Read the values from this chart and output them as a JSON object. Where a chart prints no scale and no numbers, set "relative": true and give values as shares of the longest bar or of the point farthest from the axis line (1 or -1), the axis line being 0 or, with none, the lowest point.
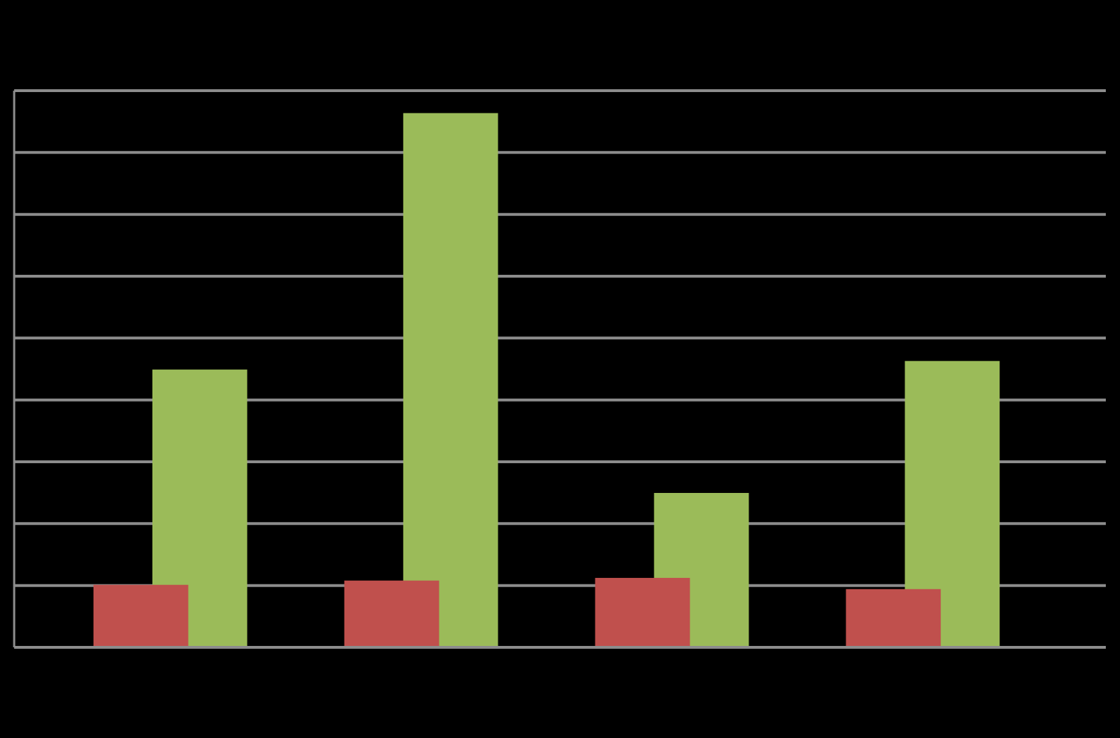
{
  "chart_data": {
    "type": "bar",
    "relative": true,
    "categories": [
      null,
      null,
      null,
      null
    ],
    "grid": "y",
    "series": [
      {
        "color": "#c0504d",
        "values": [
          0.117,
          0.125,
          0.13,
          0.109
        ]
      },
      {
        "color": "#9bbb59",
        "values": [
          0.52,
          1,
          0.289,
          0.536
        ]
      }
    ]
  }
}
